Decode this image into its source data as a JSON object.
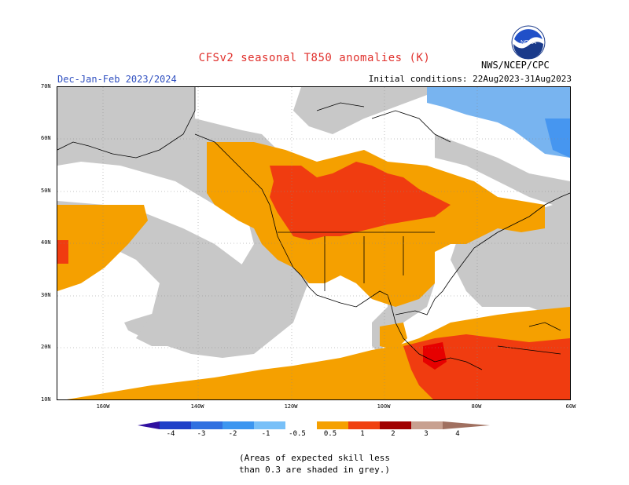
{
  "header": {
    "title": "CFSv2 seasonal T850 anomalies (K)",
    "period": "Dec-Jan-Feb 2023/2024",
    "initial_conditions": "Initial conditions: 22Aug2023-31Aug2023",
    "agency": "NWS/NCEP/CPC",
    "logo_text": "NOAA"
  },
  "map": {
    "lat_labels": [
      "70N",
      "60N",
      "50N",
      "40N",
      "30N",
      "20N",
      "10N"
    ],
    "lon_labels": [
      "160W",
      "140W",
      "120W",
      "100W",
      "80W",
      "60W"
    ],
    "colors": {
      "skill_grey": "#c8c8c8",
      "anom_0_5_1": "#f5a000",
      "anom_1_2": "#f03c10",
      "anom_2_3": "#e60000",
      "anom_neg_1_0_5": "#78b4f0",
      "anom_neg_2_1": "#4696f0"
    }
  },
  "colorbar": {
    "labels": [
      "-4",
      "-3",
      "-2",
      "-1",
      "-0.5",
      "0.5",
      "1",
      "2",
      "3",
      "4"
    ],
    "colors": [
      "#3010a0",
      "#2040c8",
      "#3070e0",
      "#3c96f0",
      "#78c0f8",
      "#ffffff",
      "#f5a000",
      "#f04010",
      "#d00000",
      "#a00000",
      "#c8a090",
      "#a07060"
    ]
  },
  "note": {
    "line1": "(Areas of expected skill less",
    "line2": "than 0.3 are shaded in grey.)"
  }
}
